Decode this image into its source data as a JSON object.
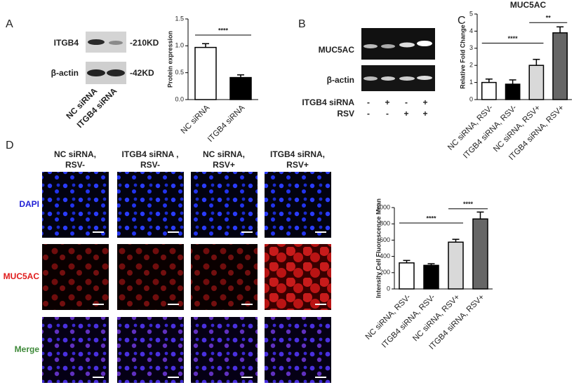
{
  "panel_labels": [
    "A",
    "B",
    "C",
    "D"
  ],
  "blot_a": {
    "bands": [
      "ITGB4",
      "β-actin"
    ],
    "sizes": [
      "-210KD",
      "-42KD"
    ],
    "lanes": [
      "NC siRNA",
      "ITGB4 siRNA"
    ]
  },
  "gel_b": {
    "bands": [
      "MUC5AC",
      "β-actin"
    ],
    "conditions": [
      {
        "name": "ITGB4 siRNA",
        "signs": [
          "-",
          "+",
          "-",
          "+"
        ]
      },
      {
        "name": "RSV",
        "signs": [
          "-",
          "-",
          "+",
          "+"
        ]
      }
    ]
  },
  "microscopy_d": {
    "columns": [
      [
        "NC siRNA,",
        "RSV-"
      ],
      [
        "ITGB4 siRNA ,",
        "RSV-"
      ],
      [
        "NC siRNA,",
        "RSV+"
      ],
      [
        "ITGB4 siRNA,",
        "RSV+"
      ]
    ],
    "rows": [
      "DAPI",
      "MUC5AC",
      "Merge"
    ],
    "row_colors": [
      "#1f1fd6",
      "#e01b1b",
      "#3f8a3a"
    ]
  },
  "chart_data": [
    {
      "type": "bar",
      "y_label": "Protein expression",
      "categories": [
        "NC siRNA",
        "ITGB4 siRNA"
      ],
      "values": [
        0.97,
        0.41
      ],
      "errors": [
        0.07,
        0.05
      ],
      "colors": [
        "#ffffff",
        "#000000"
      ],
      "ylim": [
        0,
        1.5
      ],
      "yticks": [
        {
          "value": 0,
          "label": "0.0"
        },
        {
          "value": 0.5,
          "label": "0.5"
        },
        {
          "value": 1,
          "label": "1.0"
        },
        {
          "value": 1.5,
          "label": "1.5"
        }
      ],
      "significance": [
        {
          "label": "****",
          "from": 0,
          "to": 1,
          "y": 1.2
        }
      ]
    },
    {
      "type": "bar",
      "title": "MUC5AC",
      "y_label": "Relative Fold Change",
      "categories": [
        "NC siRNA, RSV-",
        "ITGB4 siRNA, RSV-",
        "NC siRNA, RSV+",
        "ITGB4 siRNA, RSV+"
      ],
      "values": [
        1.0,
        0.9,
        2.0,
        3.9
      ],
      "errors": [
        0.2,
        0.25,
        0.35,
        0.35
      ],
      "colors": [
        "#ffffff",
        "#000000",
        "#d9d9d9",
        "#666666"
      ],
      "ylim": [
        0,
        5
      ],
      "yticks": [
        0,
        1,
        2,
        3,
        4,
        5
      ],
      "significance": [
        {
          "label": "****",
          "from": 0,
          "to": 2,
          "y": 3.3
        },
        {
          "label": "**",
          "from": 2,
          "to": 3,
          "y": 4.5
        }
      ]
    },
    {
      "type": "bar",
      "y_label": "Intensity Cell Fluorescence Mean",
      "categories": [
        "NC siRNA, RSV-",
        "ITGB4 siRNA, RSV-",
        "NC siRNA, RSV+",
        "ITGB4 siRNA, RSV+"
      ],
      "values": [
        320,
        290,
        575,
        860
      ],
      "errors": [
        30,
        20,
        35,
        85
      ],
      "colors": [
        "#ffffff",
        "#000000",
        "#d9d9d9",
        "#666666"
      ],
      "ylim": [
        0,
        1000
      ],
      "yticks": [
        0,
        200,
        400,
        600,
        800,
        1000
      ],
      "significance": [
        {
          "label": "****",
          "from": 0,
          "to": 2,
          "y": 810
        },
        {
          "label": "****",
          "from": 2,
          "to": 3,
          "y": 985
        }
      ]
    }
  ]
}
